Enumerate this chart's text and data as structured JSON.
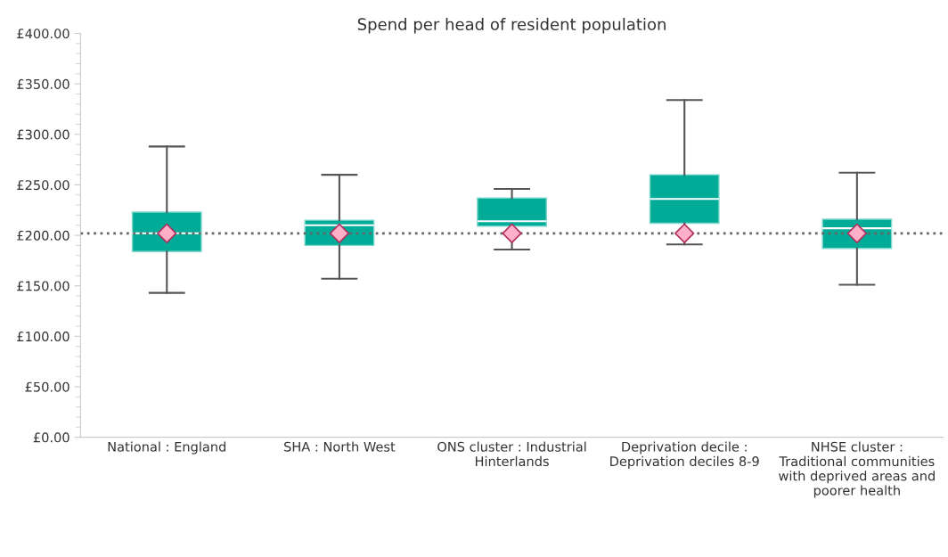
{
  "chart_data": {
    "type": "box",
    "title": "Spend per head of resident population",
    "categories": [
      "National : England",
      "SHA : North West",
      "ONS cluster : Industrial\nHinterlands",
      "Deprivation decile :\nDeprivation deciles 8-9",
      "NHSE cluster :\nTraditional communities\nwith deprived areas and\npoorer health"
    ],
    "series": [
      {
        "color": "#00ac98",
        "boxes": [
          {
            "low": 143,
            "q1": 184,
            "median": 202,
            "q3": 223,
            "high": 288,
            "mean": 202
          },
          {
            "low": 157,
            "q1": 190,
            "median": 210,
            "q3": 215,
            "high": 260,
            "mean": 202
          },
          {
            "low": 186,
            "q1": 209,
            "median": 214,
            "q3": 237,
            "high": 246,
            "mean": 202
          },
          {
            "low": 191,
            "q1": 212,
            "median": 236,
            "q3": 260,
            "high": 334,
            "mean": 202
          },
          {
            "low": 151,
            "q1": 187,
            "median": 207,
            "q3": 216,
            "high": 262,
            "mean": 202
          }
        ]
      }
    ],
    "ylim": [
      0,
      400
    ],
    "yticks": [
      {
        "value": 0,
        "label": "£0.00"
      },
      {
        "value": 50,
        "label": "£50.00"
      },
      {
        "value": 100,
        "label": "£100.00"
      },
      {
        "value": 150,
        "label": "£150.00"
      },
      {
        "value": 200,
        "label": "£200.00"
      },
      {
        "value": 250,
        "label": "£250.00"
      },
      {
        "value": 300,
        "label": "£300.00"
      },
      {
        "value": 350,
        "label": "£350.00"
      },
      {
        "value": 400,
        "label": "£400.00"
      }
    ],
    "ref_lines": [
      {
        "axis": "y",
        "value": 202,
        "label": null,
        "color": "#666666",
        "line_style": "dotted"
      }
    ],
    "marker": "diamond",
    "grid": false,
    "legend": false
  }
}
